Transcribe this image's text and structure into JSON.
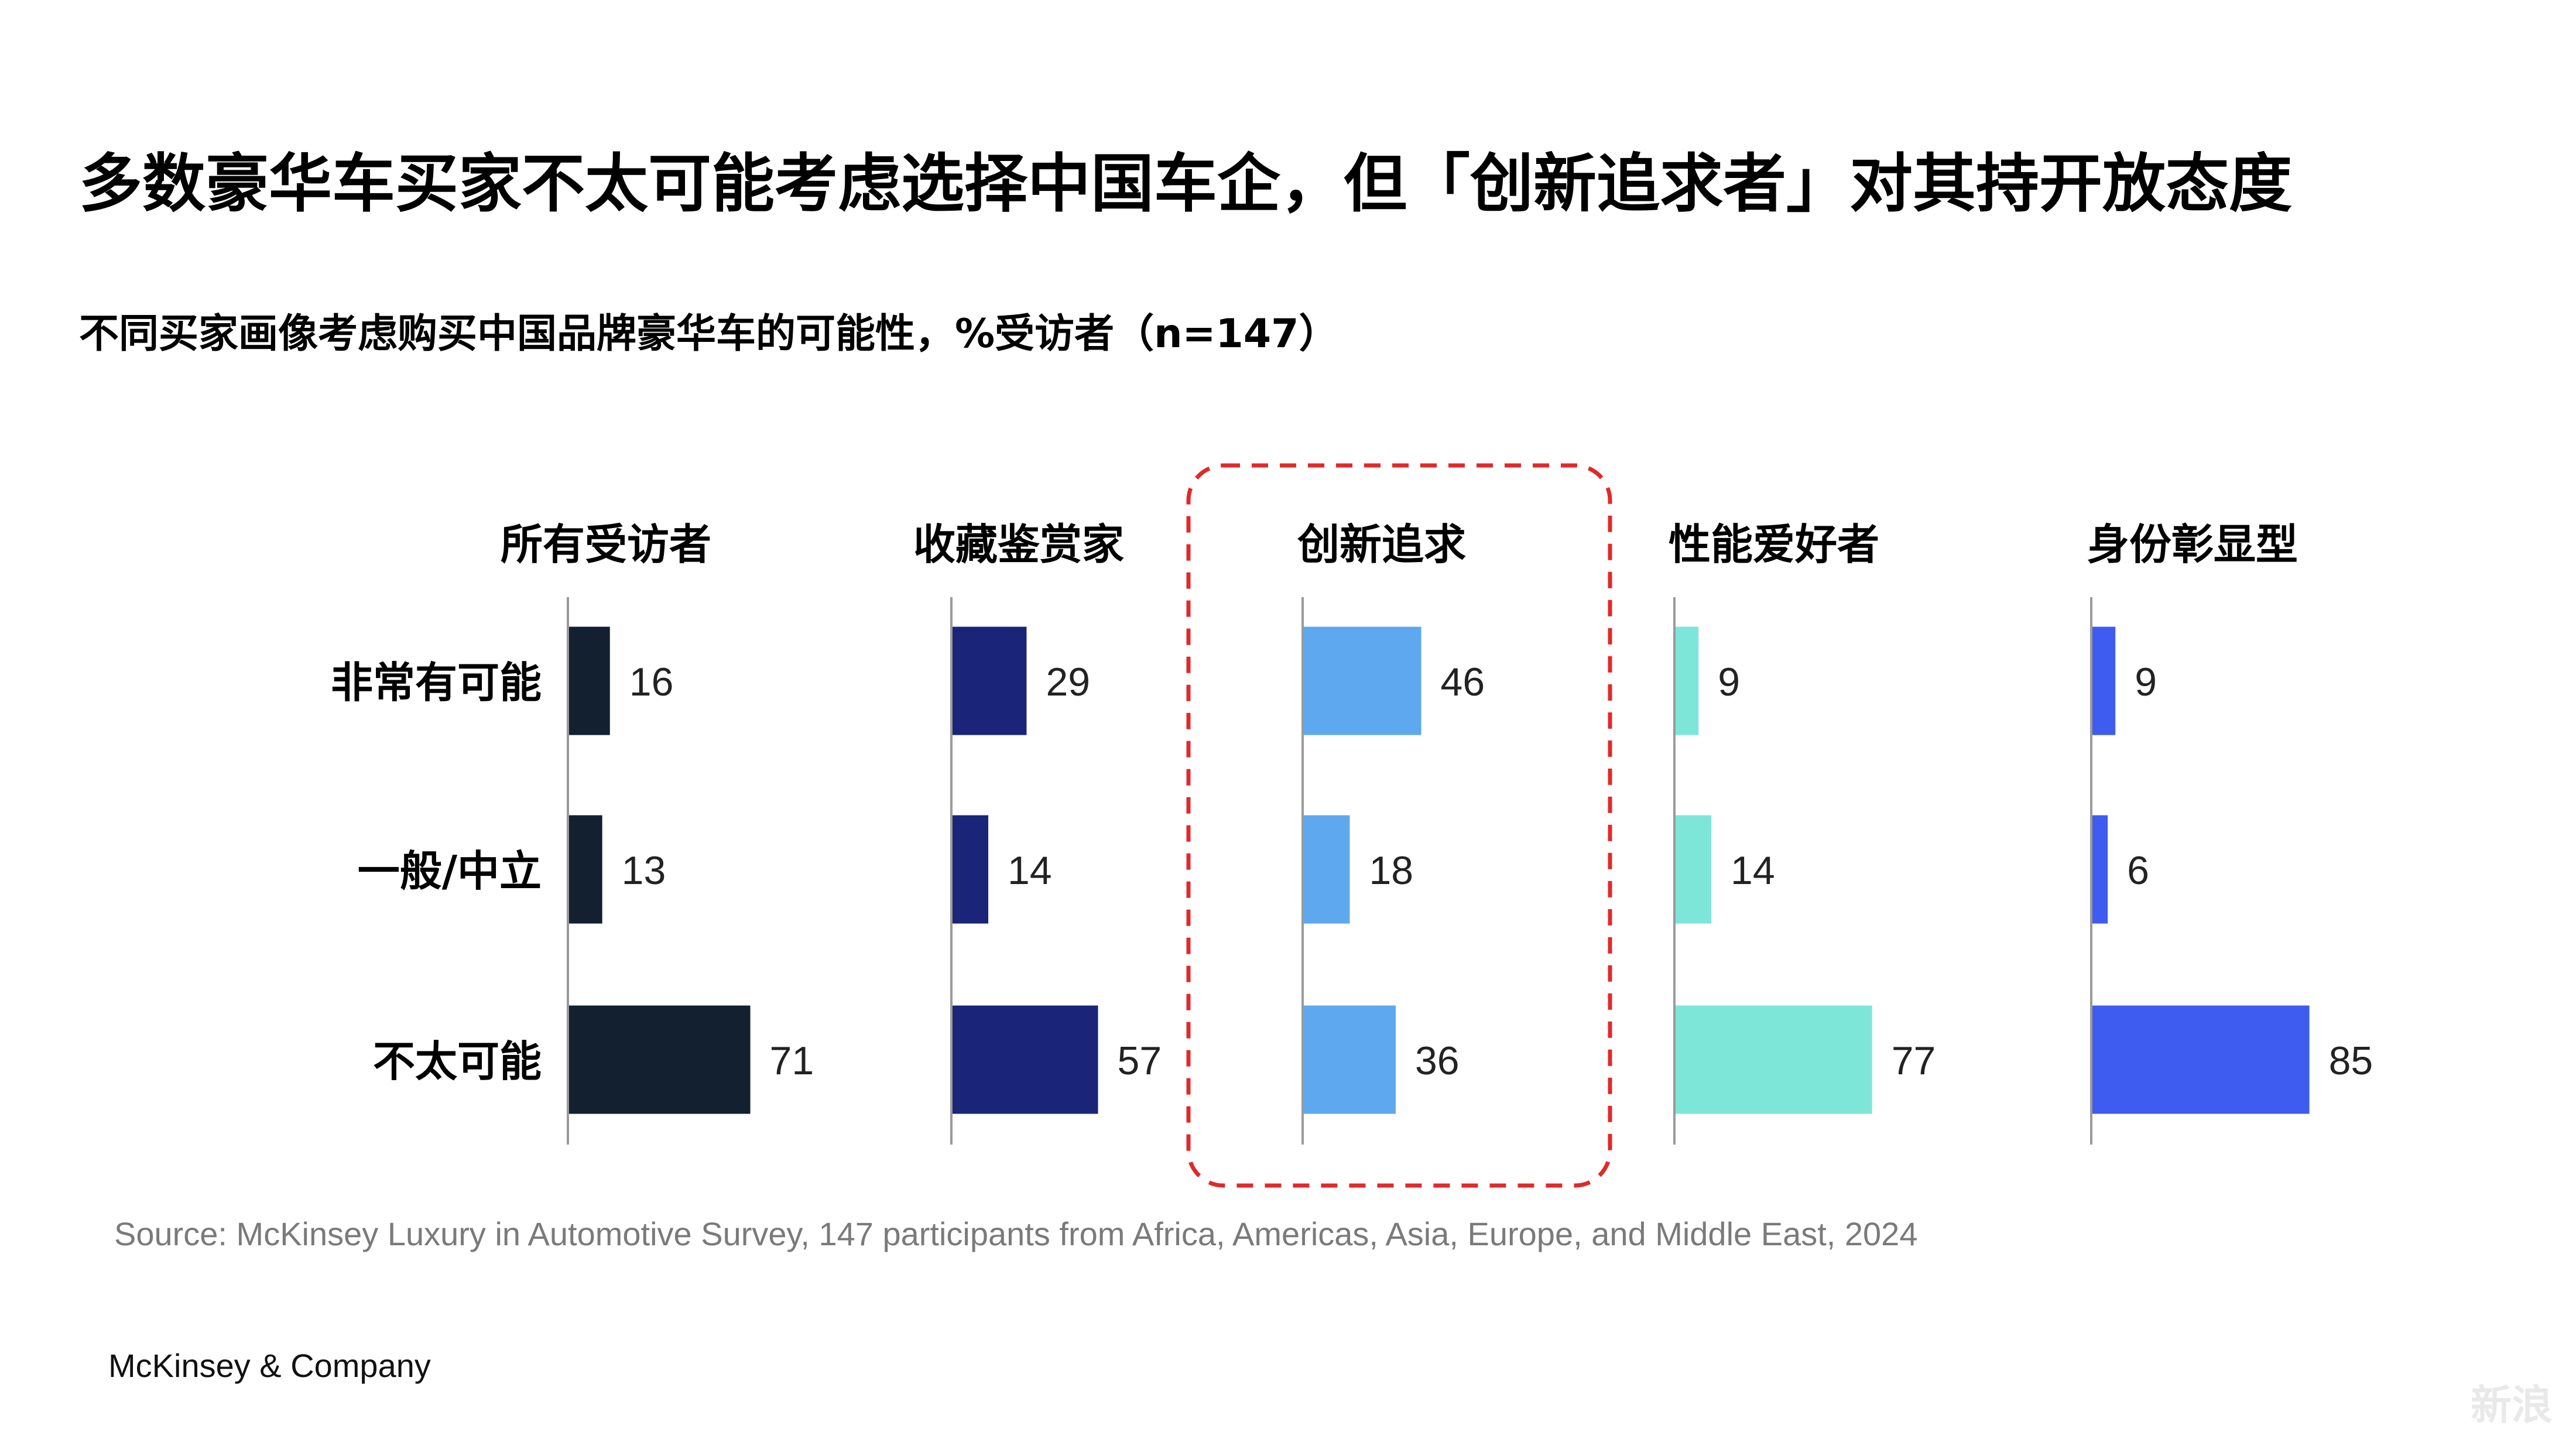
{
  "title": "多数豪华车买家不太可能考虑选择中国车企，但「创新追求者」对其持开放态度",
  "subtitle": "不同买家画像考虑购买中国品牌豪华车的可能性，%受访者（n=147）",
  "source": "Source: McKinsey Luxury in Automotive Survey, 147 participants from Africa, Americas, Asia, Europe, and Middle East, 2024",
  "brand": "McKinsey & Company",
  "watermark": "新浪",
  "chart_data": {
    "type": "bar",
    "orientation": "horizontal",
    "categories": [
      "非常有可能",
      "一般/中立",
      "不太可能"
    ],
    "highlighted_series": "创新追求",
    "series": [
      {
        "name": "所有受访者",
        "values": [
          16,
          13,
          71
        ],
        "color": "#12202f"
      },
      {
        "name": "收藏鉴赏家",
        "values": [
          29,
          14,
          57
        ],
        "color": "#1a2478"
      },
      {
        "name": "创新追求",
        "values": [
          46,
          18,
          36
        ],
        "color": "#5ea8ef"
      },
      {
        "name": "性能爱好者",
        "values": [
          9,
          14,
          77
        ],
        "color": "#7ee6d9"
      },
      {
        "name": "身份彰显型",
        "values": [
          9,
          6,
          85
        ],
        "color": "#3f5cf0"
      }
    ],
    "highlight_color": "#e02a2a"
  }
}
